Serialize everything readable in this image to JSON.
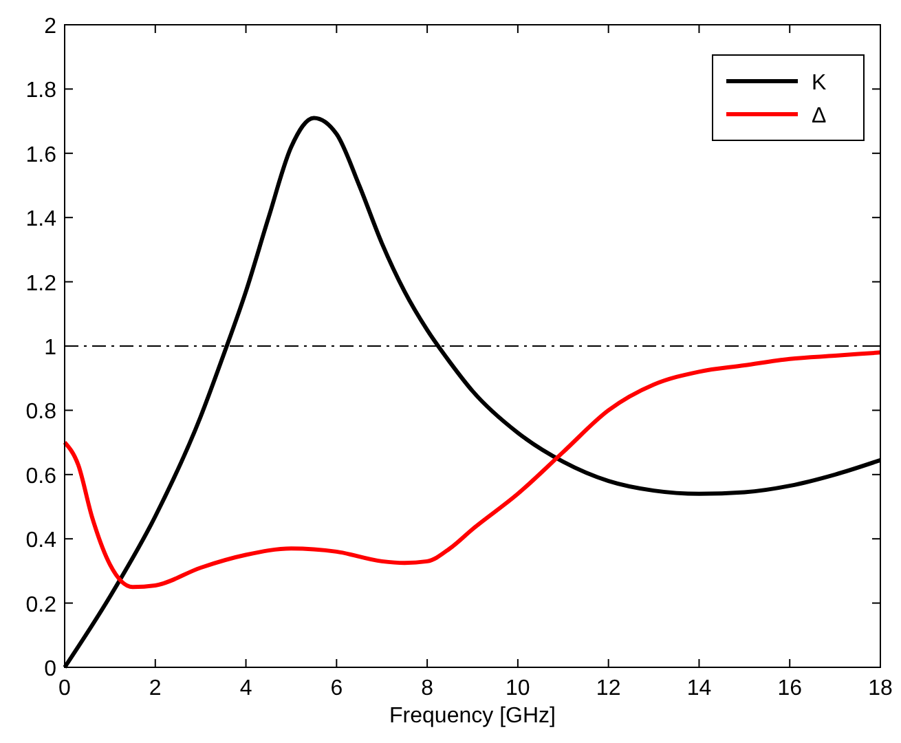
{
  "chart_data": {
    "type": "line",
    "xlabel": "Frequency [GHz]",
    "xlim": [
      0,
      18
    ],
    "xticks": [
      0,
      2,
      4,
      6,
      8,
      10,
      12,
      14,
      16,
      18
    ],
    "ylim": [
      0,
      2
    ],
    "yticks": [
      0,
      0.2,
      0.4,
      0.6,
      0.8,
      1,
      1.2,
      1.4,
      1.6,
      1.8,
      2
    ],
    "grid": false,
    "legend": "top right",
    "line_style": "solid",
    "marker": "none",
    "ref_lines": [
      {
        "axis": "y",
        "value": 1,
        "color": "#000000",
        "line_style": "dashdot"
      }
    ],
    "series": [
      {
        "name": "K",
        "color": "#000000",
        "x": [
          0,
          1,
          2,
          3,
          3.5,
          4,
          4.5,
          5,
          5.5,
          6,
          6.5,
          7,
          7.5,
          8,
          8.5,
          9,
          10,
          11,
          12,
          13,
          14,
          15,
          16,
          17,
          18
        ],
        "values": [
          0,
          0.22,
          0.47,
          0.78,
          0.97,
          1.17,
          1.4,
          1.62,
          1.71,
          1.66,
          1.5,
          1.32,
          1.17,
          1.05,
          0.95,
          0.86,
          0.73,
          0.64,
          0.58,
          0.55,
          0.54,
          0.545,
          0.565,
          0.6,
          0.645
        ]
      },
      {
        "name": "Δ",
        "color": "#ff0000",
        "x": [
          0,
          0.3,
          0.6,
          1,
          1.5,
          2,
          3,
          4,
          5,
          6,
          7,
          7.5,
          8,
          8.5,
          9,
          10,
          11,
          12,
          13,
          14,
          15,
          16,
          17,
          18
        ],
        "values": [
          0.7,
          0.63,
          0.47,
          0.32,
          0.25,
          0.255,
          0.31,
          0.35,
          0.37,
          0.36,
          0.33,
          0.325,
          0.33,
          0.37,
          0.43,
          0.54,
          0.67,
          0.8,
          0.88,
          0.92,
          0.94,
          0.96,
          0.97,
          0.98
        ]
      }
    ]
  }
}
